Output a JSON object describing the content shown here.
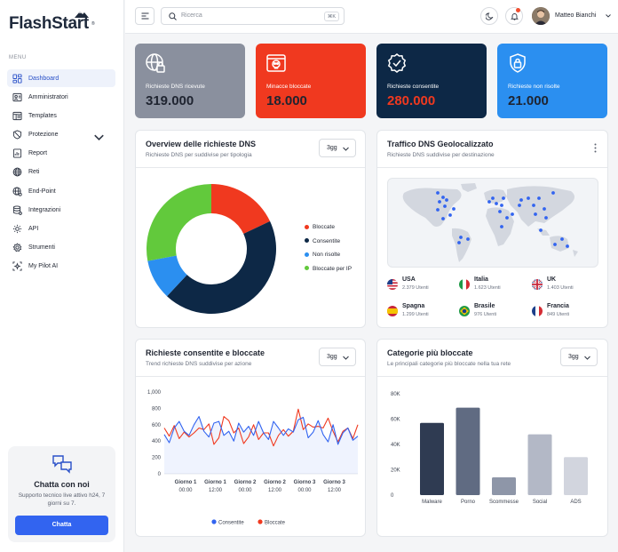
{
  "app": {
    "logo": "FlashStart",
    "registered": "®"
  },
  "sidebar": {
    "menu_label": "MENU",
    "items": [
      {
        "label": "Dashboard",
        "icon": "dashboard-icon",
        "active": true
      },
      {
        "label": "Amministratori",
        "icon": "users-icon"
      },
      {
        "label": "Templates",
        "icon": "templates-icon"
      },
      {
        "label": "Protezione",
        "icon": "shield-icon",
        "expandable": true
      },
      {
        "label": "Report",
        "icon": "report-icon"
      },
      {
        "label": "Reti",
        "icon": "globe-icon"
      },
      {
        "label": "End-Point",
        "icon": "endpoint-globe-icon"
      },
      {
        "label": "Integrazioni",
        "icon": "database-icon"
      },
      {
        "label": "API",
        "icon": "api-gear-icon"
      },
      {
        "label": "Strumenti",
        "icon": "tools-gear-icon"
      },
      {
        "label": "My Pilot AI",
        "icon": "ai-sparkle-icon"
      }
    ],
    "chat": {
      "title": "Chatta con noi",
      "subtitle": "Supporto tecnico live attivo h24, 7 giorni su 7.",
      "button": "Chatta"
    }
  },
  "topbar": {
    "search_placeholder": "Ricerca",
    "shortcut": "⌘K",
    "user_name": "Matteo Bianchi"
  },
  "colors": {
    "stat_gray": "#8a909e",
    "stat_red": "#f0391f",
    "stat_navy": "#0d2846",
    "stat_blue": "#2b8ff0",
    "bloccate": "#f0391f",
    "consentite": "#0d2846",
    "non_risolte": "#2b8ff0",
    "bloccate_per_ip": "#62c93c"
  },
  "stats": [
    {
      "label": "Richieste DNS ricevute",
      "value": "319.000",
      "icon": "globe-lock-icon"
    },
    {
      "label": "Minacce bloccate",
      "value": "18.000",
      "icon": "skull-window-icon"
    },
    {
      "label": "Richieste consentite",
      "value": "280.000",
      "icon": "badge-check-icon"
    },
    {
      "label": "Richieste non risolte",
      "value": "21.000",
      "icon": "shield-lock-icon"
    }
  ],
  "overview": {
    "title": "Overview delle richieste DNS",
    "subtitle": "Richieste DNS per suddivise per tipologia",
    "period": "3gg",
    "chart_data": {
      "type": "pie",
      "labels": [
        "Bloccate",
        "Consentite",
        "Non risolte",
        "Bloccate per IP"
      ],
      "values": [
        18,
        44,
        10,
        28
      ],
      "colors": [
        "#f0391f",
        "#0d2846",
        "#2b8ff0",
        "#62c93c"
      ],
      "legend": "right"
    }
  },
  "geo": {
    "title": "Traffico DNS Geolocalizzato",
    "subtitle": "Richieste DNS suddivise per destinazione",
    "countries": [
      {
        "name": "USA",
        "users": "2.379 Utenti",
        "flag": "usa-flag-icon"
      },
      {
        "name": "Italia",
        "users": "1.623 Utenti",
        "flag": "italy-flag-icon"
      },
      {
        "name": "UK",
        "users": "1.403 Utenti",
        "flag": "uk-flag-icon"
      },
      {
        "name": "Spagna",
        "users": "1.299 Utenti",
        "flag": "spain-flag-icon"
      },
      {
        "name": "Brasile",
        "users": "976 Utenti",
        "flag": "brazil-flag-icon"
      },
      {
        "name": "Francia",
        "users": "849 Utenti",
        "flag": "france-flag-icon"
      }
    ]
  },
  "trend": {
    "title": "Richieste consentite e bloccate",
    "subtitle": "Trend richieste DNS suddivise per azione",
    "period": "3gg",
    "chart_data": {
      "type": "line",
      "ytick_labels": [
        "1,000",
        "800",
        "600",
        "400",
        "200",
        "0"
      ],
      "ylim": [
        0,
        1000
      ],
      "x_labels": [
        [
          "Giorno 1",
          "00:00"
        ],
        [
          "Giorno 1",
          "12:00"
        ],
        [
          "Giorno 2",
          "00:00"
        ],
        [
          "Giorno 2",
          "12:00"
        ],
        [
          "Giorno 3",
          "00:00"
        ],
        [
          "Giorno 3",
          "12:00"
        ]
      ],
      "series": [
        {
          "name": "Consentite",
          "color": "#3264f0",
          "values": [
            480,
            380,
            560,
            640,
            520,
            470,
            600,
            700,
            520,
            450,
            620,
            640,
            470,
            520,
            400,
            620,
            510,
            580,
            470,
            640,
            500,
            420,
            640,
            560,
            470,
            550,
            510,
            660,
            690,
            440,
            510,
            650,
            480,
            390,
            600,
            360,
            500,
            560,
            410,
            460
          ]
        },
        {
          "name": "Bloccate",
          "color": "#f0391f",
          "values": [
            560,
            460,
            590,
            430,
            510,
            450,
            500,
            560,
            540,
            610,
            360,
            440,
            700,
            650,
            500,
            560,
            370,
            450,
            600,
            420,
            500,
            500,
            340,
            470,
            540,
            460,
            520,
            790,
            540,
            610,
            570,
            580,
            560,
            680,
            520,
            390,
            520,
            560,
            430,
            600
          ]
        }
      ],
      "legend": "bottom"
    }
  },
  "categories": {
    "title": "Categorie più bloccate",
    "subtitle": "Le principali categorie più bloccate nella tua rete",
    "period": "3gg",
    "chart_data": {
      "type": "bar",
      "categories": [
        "Malware",
        "Porno",
        "Scommesse",
        "Social",
        "ADS"
      ],
      "values": [
        57000,
        69000,
        14000,
        48000,
        30000
      ],
      "colors": [
        "#2f3b52",
        "#606b82",
        "#8e96a8",
        "#b3b8c6",
        "#d2d5de"
      ],
      "ytick_labels": [
        "80K",
        "60K",
        "40K",
        "20K",
        "0"
      ],
      "ylim": [
        0,
        80000
      ]
    }
  }
}
